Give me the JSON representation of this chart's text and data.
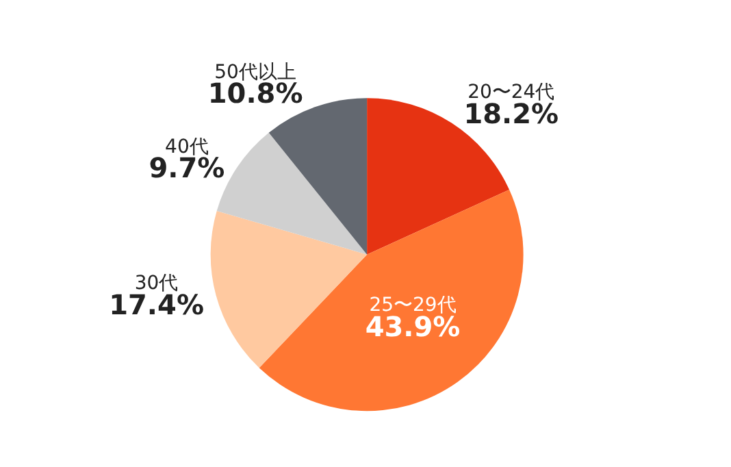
{
  "chart_data": {
    "type": "pie",
    "categories": [
      "20〜24代",
      "25〜29代",
      "30代",
      "40代",
      "50代以上"
    ],
    "values": [
      18.2,
      43.9,
      17.4,
      9.7,
      10.8
    ],
    "value_labels": [
      "18.2%",
      "43.9%",
      "17.4%",
      "9.7%",
      "10.8%"
    ],
    "colors": [
      "#e63312",
      "#ff7733",
      "#ffc9a0",
      "#d0d0d0",
      "#636870"
    ],
    "legend": false
  }
}
